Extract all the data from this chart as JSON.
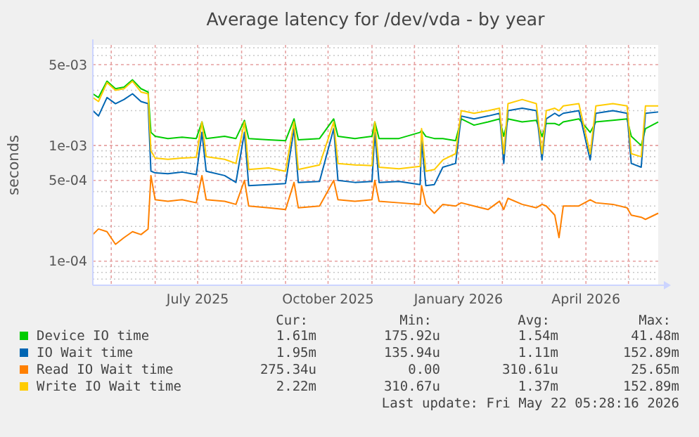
{
  "chart_data": {
    "type": "line",
    "title": "Average latency for /dev/vda - by year",
    "ylabel": "seconds",
    "log": "y",
    "grid": true,
    "legend": "bottom",
    "line_style": "solid",
    "xlim": [
      "2025-04-18",
      "2026-05-22"
    ],
    "xticks": [
      {
        "value": "2025-05-01",
        "label": null
      },
      {
        "value": "2025-06-01",
        "label": null
      },
      {
        "value": "2025-07-01",
        "label": "July 2025"
      },
      {
        "value": "2025-08-01",
        "label": null
      },
      {
        "value": "2025-09-01",
        "label": null
      },
      {
        "value": "2025-10-01",
        "label": "October 2025"
      },
      {
        "value": "2025-11-01",
        "label": null
      },
      {
        "value": "2025-12-01",
        "label": null
      },
      {
        "value": "2026-01-01",
        "label": "January 2026"
      },
      {
        "value": "2026-02-01",
        "label": null
      },
      {
        "value": "2026-03-01",
        "label": null
      },
      {
        "value": "2026-04-01",
        "label": "April 2026"
      },
      {
        "value": "2026-05-01",
        "label": null
      }
    ],
    "ylim": [
      6.2e-05,
      0.0074
    ],
    "yticks": [
      {
        "value": 7e-05,
        "label": null
      },
      {
        "value": 8e-05,
        "label": null
      },
      {
        "value": 9e-05,
        "label": null
      },
      {
        "value": 0.0001,
        "label": "1e-04"
      },
      {
        "value": 0.0002,
        "label": null
      },
      {
        "value": 0.0003,
        "label": null
      },
      {
        "value": 0.0004,
        "label": null
      },
      {
        "value": 0.0005,
        "label": "5e-04"
      },
      {
        "value": 0.0006,
        "label": null
      },
      {
        "value": 0.0007,
        "label": null
      },
      {
        "value": 0.0008,
        "label": null
      },
      {
        "value": 0.0009,
        "label": null
      },
      {
        "value": 0.001,
        "label": "1e-03"
      },
      {
        "value": 0.002,
        "label": null
      },
      {
        "value": 0.003,
        "label": null
      },
      {
        "value": 0.004,
        "label": null
      },
      {
        "value": 0.005,
        "label": "5e-03"
      },
      {
        "value": 0.006,
        "label": null
      },
      {
        "value": 0.007,
        "label": null
      }
    ],
    "x": [
      "2025-04-18",
      "2025-04-22",
      "2025-04-28",
      "2025-05-04",
      "2025-05-10",
      "2025-05-16",
      "2025-05-22",
      "2025-05-27",
      "2025-05-29",
      "2025-06-01",
      "2025-06-10",
      "2025-06-20",
      "2025-06-30",
      "2025-07-04",
      "2025-07-07",
      "2025-07-20",
      "2025-07-28",
      "2025-08-03",
      "2025-08-06",
      "2025-08-20",
      "2025-09-01",
      "2025-09-07",
      "2025-09-10",
      "2025-09-25",
      "2025-10-05",
      "2025-10-08",
      "2025-10-20",
      "2025-11-01",
      "2025-11-03",
      "2025-11-06",
      "2025-11-20",
      "2025-12-05",
      "2025-12-06",
      "2025-12-09",
      "2025-12-15",
      "2025-12-21",
      "2025-12-30",
      "2026-01-03",
      "2026-01-12",
      "2026-01-22",
      "2026-01-30",
      "2026-02-02",
      "2026-02-05",
      "2026-02-15",
      "2026-02-25",
      "2026-03-01",
      "2026-03-04",
      "2026-03-10",
      "2026-03-13",
      "2026-03-16",
      "2026-03-27",
      "2026-04-04",
      "2026-04-08",
      "2026-04-20",
      "2026-04-30",
      "2026-05-03",
      "2026-05-10",
      "2026-05-13",
      "2026-05-22"
    ],
    "series": [
      {
        "name": "Device IO time",
        "color": "#00cc00",
        "values": [
          0.0028,
          0.0026,
          0.0036,
          0.0031,
          0.0032,
          0.0037,
          0.0031,
          0.0029,
          0.0013,
          0.0012,
          0.00115,
          0.00118,
          0.00115,
          0.0016,
          0.00115,
          0.0012,
          0.00115,
          0.00165,
          0.00115,
          0.00112,
          0.0011,
          0.0017,
          0.00112,
          0.00115,
          0.0017,
          0.0012,
          0.00115,
          0.0012,
          0.0016,
          0.00115,
          0.00115,
          0.0013,
          0.00135,
          0.0012,
          0.00115,
          0.00115,
          0.0011,
          0.0017,
          0.0015,
          0.0016,
          0.0017,
          0.0012,
          0.0017,
          0.0016,
          0.00165,
          0.0012,
          0.00155,
          0.00155,
          0.0015,
          0.0016,
          0.0017,
          0.0013,
          0.0016,
          0.00165,
          0.0017,
          0.0012,
          0.001,
          0.0014,
          0.0016
        ]
      },
      {
        "name": "IO Wait time",
        "color": "#0066b3",
        "values": [
          0.002,
          0.0018,
          0.0026,
          0.0023,
          0.0025,
          0.0028,
          0.0024,
          0.0023,
          0.0006,
          0.00058,
          0.00057,
          0.00059,
          0.00056,
          0.0013,
          0.0006,
          0.00055,
          0.00048,
          0.0013,
          0.00045,
          0.00046,
          0.00047,
          0.0014,
          0.00048,
          0.00049,
          0.0014,
          0.0005,
          0.00048,
          0.00049,
          0.0013,
          0.00048,
          0.00049,
          0.00046,
          0.0011,
          0.00045,
          0.00046,
          0.00065,
          0.0007,
          0.0018,
          0.0017,
          0.0018,
          0.0019,
          0.0007,
          0.002,
          0.0021,
          0.002,
          0.00075,
          0.0017,
          0.0019,
          0.0018,
          0.0019,
          0.002,
          0.00075,
          0.0019,
          0.002,
          0.0019,
          0.0007,
          0.00065,
          0.0019,
          0.00195
        ]
      },
      {
        "name": "Read IO Wait time",
        "color": "#ff8000",
        "values": [
          0.00017,
          0.00019,
          0.00018,
          0.00014,
          0.00016,
          0.00018,
          0.00017,
          0.00019,
          0.00055,
          0.00034,
          0.00033,
          0.00034,
          0.00032,
          0.00055,
          0.00034,
          0.00033,
          0.00031,
          0.0005,
          0.0003,
          0.00029,
          0.00028,
          0.00048,
          0.00029,
          0.0003,
          0.0005,
          0.00034,
          0.00033,
          0.00034,
          0.0005,
          0.00033,
          0.00032,
          0.00031,
          0.00045,
          0.00031,
          0.00026,
          0.00031,
          0.0003,
          0.00032,
          0.0003,
          0.00028,
          0.00033,
          0.00028,
          0.00035,
          0.00031,
          0.00029,
          0.00031,
          0.0003,
          0.00025,
          0.00016,
          0.0003,
          0.0003,
          0.00034,
          0.00032,
          0.00031,
          0.00029,
          0.00025,
          0.00024,
          0.00023,
          0.00026
        ]
      },
      {
        "name": "Write IO Wait time",
        "color": "#ffcc00",
        "values": [
          0.0026,
          0.0024,
          0.0035,
          0.003,
          0.0031,
          0.0036,
          0.0029,
          0.0028,
          0.0009,
          0.00078,
          0.00076,
          0.00078,
          0.00079,
          0.0016,
          0.0008,
          0.00076,
          0.0007,
          0.0016,
          0.00062,
          0.00064,
          0.0006,
          0.0016,
          0.00062,
          0.00068,
          0.0016,
          0.0007,
          0.00068,
          0.00067,
          0.0016,
          0.00065,
          0.00063,
          0.00066,
          0.0014,
          0.0006,
          0.00062,
          0.00075,
          0.00085,
          0.002,
          0.0019,
          0.002,
          0.0021,
          0.00085,
          0.0023,
          0.0025,
          0.0023,
          0.00085,
          0.002,
          0.0021,
          0.002,
          0.0022,
          0.0023,
          0.00085,
          0.0022,
          0.0023,
          0.0022,
          0.00085,
          0.0008,
          0.0022,
          0.0022
        ]
      }
    ],
    "annotations": [
      "Cur:",
      "Min:",
      "Avg:",
      "Max:",
      "1.61m",
      "175.92u",
      "1.54m",
      "41.48m",
      "1.95m",
      "135.94u",
      "1.11m",
      "152.89m",
      "275.34u",
      "0.00",
      "310.61u",
      "25.65m",
      "2.22m",
      "310.67u",
      "1.37m",
      "152.89m",
      "Last update: Fri May 22 05:28:16 2026"
    ]
  }
}
